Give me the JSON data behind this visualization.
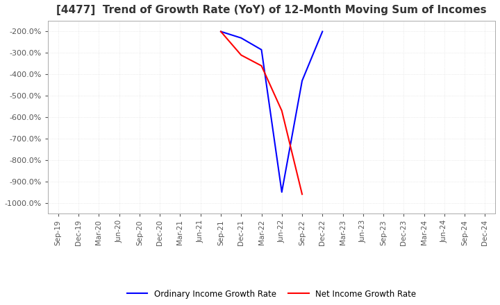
{
  "title": "[4477]  Trend of Growth Rate (YoY) of 12-Month Moving Sum of Incomes",
  "ordinary_x": [
    "Sep-21",
    "Dec-21",
    "Mar-22",
    "Jun-22",
    "Sep-22",
    "Dec-22"
  ],
  "ordinary_y": [
    -200,
    -230,
    -285,
    -950,
    -430,
    -200
  ],
  "net_x": [
    "Sep-21",
    "Dec-21",
    "Mar-22",
    "Jun-22",
    "Sep-22"
  ],
  "net_y": [
    -200,
    -310,
    -360,
    -570,
    -960
  ],
  "ordinary_color": "#0000FF",
  "net_color": "#FF0000",
  "ylim_min": -1050,
  "ylim_max": -150,
  "yticks": [
    -200,
    -300,
    -400,
    -500,
    -600,
    -700,
    -800,
    -900,
    -1000
  ],
  "background_color": "#FFFFFF",
  "grid_color": "#CCCCCC",
  "grid_alpha": 0.7,
  "legend_labels": [
    "Ordinary Income Growth Rate",
    "Net Income Growth Rate"
  ],
  "all_x_labels": [
    "Sep-19",
    "Dec-19",
    "Mar-20",
    "Jun-20",
    "Sep-20",
    "Dec-20",
    "Mar-21",
    "Jun-21",
    "Sep-21",
    "Dec-21",
    "Mar-22",
    "Jun-22",
    "Sep-22",
    "Dec-22",
    "Mar-23",
    "Jun-23",
    "Sep-23",
    "Dec-23",
    "Mar-24",
    "Jun-24",
    "Sep-24",
    "Dec-24"
  ],
  "title_fontsize": 11,
  "tick_fontsize": 7.5,
  "ytick_fontsize": 8,
  "legend_fontsize": 8.5,
  "line_width": 1.5
}
